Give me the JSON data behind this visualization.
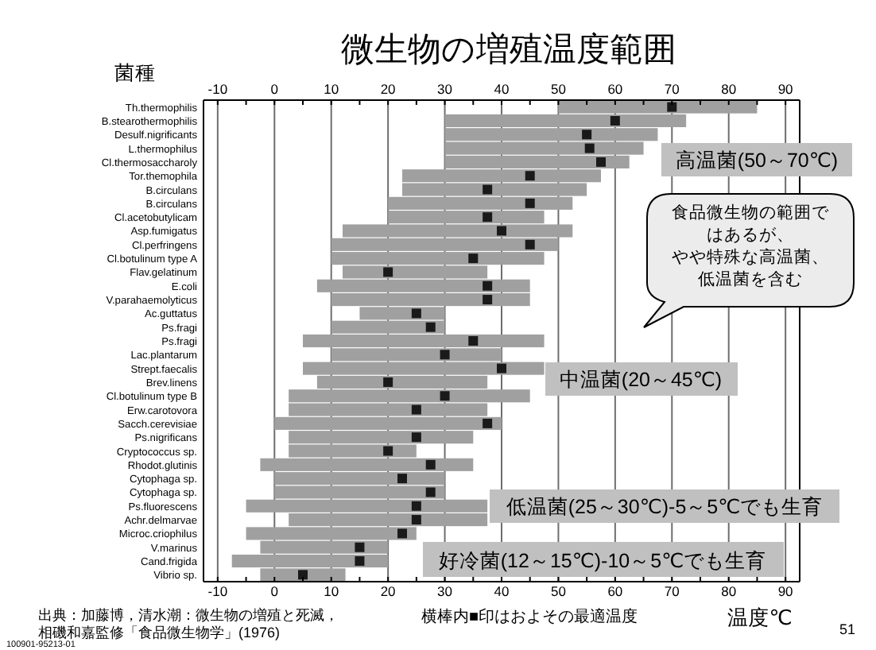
{
  "chart_data": {
    "type": "bar",
    "orientation": "horizontal",
    "title": "微生物の増殖温度範囲",
    "ylabel": "菌種",
    "xlabel": "温度℃",
    "categories": [
      "Th.thermophilis",
      "B.stearothermophilis",
      "Desulf.nigrificants",
      "L.thermophilus",
      "Cl.thermosaccharoly",
      "Tor.themophila",
      "B.circulans",
      "B.circulans",
      "Cl.acetobutylicam",
      "Asp.fumigatus",
      "Cl.perfringens",
      "Cl.botulinum type A",
      "Flav.gelatinum",
      "E.coli",
      "V.parahaemolyticus",
      "Ac.guttatus",
      "Ps.fragi",
      "Ps.fragi",
      "Lac.plantarum",
      "Strept.faecalis",
      "Brev.linens",
      "Cl.botulinum type B",
      "Erw.carotovora",
      "Sacch.cerevisiae",
      "Ps.nigrificans",
      "Cryptococcus sp.",
      "Rhodot.glutinis",
      "Cytophaga sp.",
      "Cytophaga sp.",
      "Ps.fluorescens",
      "Achr.delmarvae",
      "Microc.criophilus",
      "V.marinus",
      "Cand.frigida",
      "Vibrio sp."
    ],
    "series": [
      {
        "type": "bar",
        "color": "#a0a0a0",
        "base": [
          50,
          30,
          30,
          30,
          30,
          22.5,
          22.5,
          20,
          20,
          12,
          10,
          10,
          12,
          7.5,
          10,
          15,
          10,
          5,
          10,
          5,
          7.5,
          2.5,
          2.5,
          0,
          2.5,
          2.5,
          -2.5,
          0,
          0,
          -5,
          2.5,
          -5,
          -2.5,
          -7.5,
          -2.5
        ],
        "values": [
          35,
          42.5,
          37.5,
          35,
          32.5,
          35,
          32.5,
          32.5,
          27.5,
          40.5,
          40,
          37.5,
          25.5,
          37.5,
          35,
          15,
          20,
          42.5,
          30,
          42.5,
          30,
          42.5,
          35,
          40,
          32.5,
          22.5,
          37.5,
          30,
          30,
          42.5,
          35,
          30,
          22.5,
          27.5,
          15
        ]
      },
      {
        "type": "scatter",
        "color": "#1a1a1a",
        "marker": "square",
        "values": [
          70,
          60,
          55,
          55.5,
          57.5,
          45,
          37.5,
          45,
          37.5,
          40,
          45,
          35,
          20,
          37.5,
          37.5,
          25,
          27.5,
          35,
          30,
          40,
          20,
          30,
          25,
          37.5,
          25,
          20,
          27.5,
          22.5,
          27.5,
          25,
          25,
          22.5,
          15,
          15,
          5
        ]
      }
    ],
    "xlim": [
      -12.5,
      92.5
    ],
    "xticks": [
      -10,
      {
        "value": -5,
        "label": null
      },
      0,
      {
        "value": 5,
        "label": null
      },
      10,
      {
        "value": 15,
        "label": null
      },
      20,
      {
        "value": 25,
        "label": null
      },
      30,
      {
        "value": 35,
        "label": null
      },
      40,
      {
        "value": 45,
        "label": null
      },
      50,
      {
        "value": 55,
        "label": null
      },
      60,
      {
        "value": 65,
        "label": null
      },
      70,
      {
        "value": 75,
        "label": null
      },
      80,
      {
        "value": 85,
        "label": null
      },
      90
    ],
    "x2lim": [
      -12.5,
      92.5
    ],
    "x2ticks": [
      -10,
      {
        "value": -5,
        "label": null
      },
      0,
      {
        "value": 5,
        "label": null
      },
      10,
      {
        "value": 15,
        "label": null
      },
      20,
      {
        "value": 25,
        "label": null
      },
      30,
      {
        "value": 35,
        "label": null
      },
      40,
      {
        "value": 45,
        "label": null
      },
      50,
      {
        "value": 55,
        "label": null
      },
      60,
      {
        "value": 65,
        "label": null
      },
      70,
      {
        "value": 75,
        "label": null
      },
      80,
      {
        "value": 85,
        "label": null
      },
      90
    ],
    "grid": "x",
    "annotations": [
      "高温菌(50～70℃)",
      "食品微生物の範囲ではあるが、やや特殊な高温菌、低温菌を含む",
      "中温菌(20～45℃)",
      "低温菌(25～30℃)-5～5℃でも生育",
      "好冷菌(12～15℃)-10～5℃でも生育",
      "横棒内■印はおよその最適温度",
      "出典：加藤博，清水潮：微生物の増殖と死滅，相磯和嘉監修「食品微生物学」(1976)",
      "100901-95213-01",
      "51"
    ]
  }
}
